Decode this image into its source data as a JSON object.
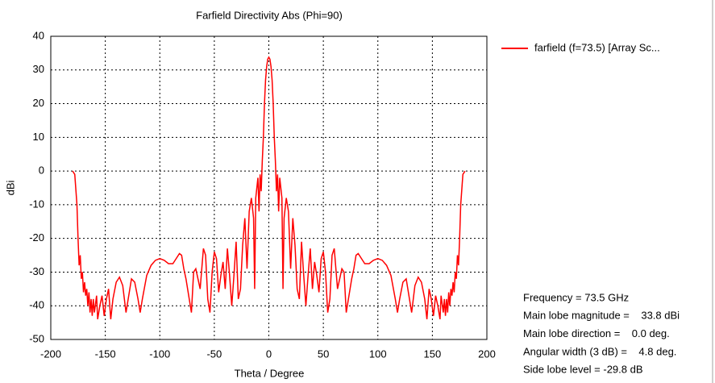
{
  "chart_data": {
    "type": "line",
    "title": "Farfield Directivity Abs (Phi=90)",
    "xlabel": "Theta / Degree",
    "ylabel": "dBi",
    "xlim": [
      -200,
      200
    ],
    "ylim": [
      -50,
      40
    ],
    "xticks": [
      -200,
      -150,
      -100,
      -50,
      0,
      50,
      100,
      150,
      200
    ],
    "yticks": [
      -50,
      -40,
      -30,
      -20,
      -10,
      0,
      10,
      20,
      30,
      40
    ],
    "grid": true,
    "legend": "right",
    "x": [
      -180,
      -178,
      -176,
      -175,
      -174,
      -173,
      -172,
      -171,
      -170,
      -169,
      -168,
      -167,
      -166,
      -165,
      -164,
      -163,
      -162,
      -161,
      -160,
      -158,
      -157,
      -155,
      -153,
      -151,
      -149,
      -147,
      -145,
      -143,
      -140,
      -137,
      -134,
      -131,
      -129,
      -126,
      -123,
      -120,
      -118,
      -116,
      -112,
      -108,
      -104,
      -100,
      -96,
      -92,
      -88,
      -85,
      -82,
      -80,
      -78,
      -76,
      -73,
      -71,
      -70,
      -69,
      -67,
      -65,
      -63,
      -60,
      -58,
      -56,
      -54,
      -52,
      -50,
      -48,
      -46,
      -44,
      -42,
      -40,
      -38,
      -36,
      -34,
      -32,
      -30,
      -28,
      -26,
      -24,
      -22,
      -20,
      -18,
      -16,
      -14,
      -13,
      -12,
      -10,
      -9,
      -8,
      -7,
      -6,
      -5,
      -4,
      -3,
      -2,
      -1,
      0,
      1,
      2,
      3,
      4,
      5,
      6,
      7,
      8,
      9,
      10,
      12,
      13,
      14,
      16,
      18,
      20,
      22,
      24,
      26,
      28,
      30,
      32,
      34,
      36,
      38,
      40,
      42,
      44,
      46,
      48,
      50,
      52,
      54,
      56,
      58,
      60,
      63,
      65,
      67,
      69,
      70,
      71,
      73,
      76,
      78,
      80,
      82,
      85,
      88,
      92,
      96,
      100,
      104,
      108,
      112,
      116,
      118,
      120,
      123,
      126,
      129,
      131,
      134,
      137,
      140,
      143,
      145,
      147,
      149,
      151,
      153,
      155,
      157,
      158,
      160,
      161,
      162,
      163,
      164,
      165,
      166,
      167,
      168,
      169,
      170,
      171,
      172,
      173,
      174,
      175,
      176,
      178,
      180
    ],
    "series": [
      {
        "name": "farfield (f=73.5) [Array Sc...",
        "color": "#ff0000",
        "values": [
          0,
          -1,
          -10,
          -20,
          -28,
          -25,
          -32,
          -30,
          -36,
          -33,
          -37,
          -35,
          -40,
          -36,
          -42,
          -38,
          -43,
          -38,
          -42,
          -37,
          -44,
          -40,
          -37,
          -43,
          -38,
          -35,
          -44,
          -38,
          -33,
          -31.5,
          -34,
          -42,
          -38,
          -32,
          -33,
          -38,
          -42,
          -38,
          -31,
          -28,
          -26.5,
          -26,
          -26.5,
          -27.5,
          -27.5,
          -26,
          -24.5,
          -25,
          -29,
          -32,
          -38,
          -42,
          -36,
          -30,
          -29,
          -32,
          -35,
          -23,
          -25,
          -38,
          -42,
          -30,
          -24,
          -26,
          -36,
          -31,
          -27,
          -35,
          -23,
          -31,
          -40,
          -31,
          -21,
          -38,
          -35,
          -22,
          -14,
          -29,
          -12,
          -8,
          -14,
          -35,
          -8,
          -2,
          -12,
          -1,
          -6,
          3,
          10,
          20,
          27,
          31,
          33.2,
          33.8,
          33.2,
          31,
          27,
          20,
          10,
          3,
          -6,
          -1,
          -12,
          -2,
          -8,
          -35,
          -14,
          -8,
          -12,
          -29,
          -14,
          -22,
          -35,
          -38,
          -21,
          -31,
          -40,
          -31,
          -23,
          -35,
          -27,
          -31,
          -36,
          -26,
          -24,
          -30,
          -42,
          -38,
          -25,
          -23,
          -35,
          -32,
          -29,
          -30,
          -36,
          -42,
          -38,
          -32,
          -29,
          -25,
          -24.5,
          -26,
          -27.5,
          -27.5,
          -26.5,
          -26,
          -26.5,
          -28,
          -31,
          -38,
          -42,
          -38,
          -33,
          -32,
          -38,
          -42,
          -34,
          -31.5,
          -33,
          -38,
          -44,
          -35,
          -38,
          -43,
          -37,
          -40,
          -44,
          -37,
          -42,
          -38,
          -43,
          -38,
          -42,
          -36,
          -40,
          -35,
          -37,
          -33,
          -36,
          -30,
          -32,
          -25,
          -28,
          -20,
          -10,
          -1,
          0
        ]
      }
    ],
    "annotations": [
      "Frequency = 73.5 GHz",
      "Main lobe magnitude =    33.8 dBi",
      "Main lobe direction =    0.0 deg.",
      "Angular width (3 dB) =    4.8 deg.",
      "Side lobe level = -29.8 dB"
    ]
  }
}
